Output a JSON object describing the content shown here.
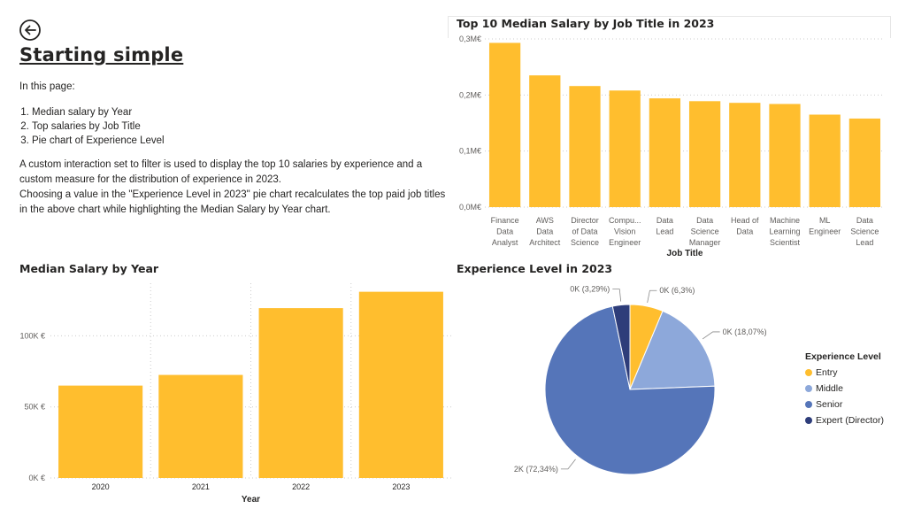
{
  "page": {
    "back_icon": "arrow-left-circle-icon",
    "title": "Starting simple",
    "intro": "In this page:",
    "items": [
      "Median salary by Year",
      "Top salaries by Job Title",
      "Pie chart of Experience Level"
    ],
    "description_1": "A custom interaction set to filter is used to display the top 10 salaries by experience and a custom measure for the distribution of experience in 2023.",
    "description_2": "Choosing a value in the \"Experience Level in 2023\"  pie chart recalculates the top paid job titles in the above chart while highlighting the Median Salary by Year chart."
  },
  "colors": {
    "bar": "#FFBE2E",
    "grid": "#cccccc",
    "entry": "#FFBE2E",
    "middle": "#8DA8DA",
    "senior": "#5575B9",
    "expert": "#2E3D7A"
  },
  "chart_data": [
    {
      "type": "bar",
      "title": "Top 10 Median Salary by Job Title in 2023",
      "xlabel": "Job Title",
      "ylabel": "",
      "categories": [
        [
          "Finance",
          "Data",
          "Analyst"
        ],
        [
          "AWS",
          "Data",
          "Architect"
        ],
        [
          "Director",
          "of Data",
          "Science"
        ],
        [
          "Compu...",
          "Vision",
          "Engineer"
        ],
        [
          "Data",
          "Lead"
        ],
        [
          "Data",
          "Science",
          "Manager"
        ],
        [
          "Head of",
          "Data"
        ],
        [
          "Machine",
          "Learning",
          "Scientist"
        ],
        [
          "ML",
          "Engineer"
        ],
        [
          "Data",
          "Science",
          "Lead"
        ]
      ],
      "values": [
        0.293,
        0.235,
        0.216,
        0.208,
        0.194,
        0.189,
        0.186,
        0.184,
        0.165,
        0.158
      ],
      "yticks": [
        0,
        0.1,
        0.2,
        0.3
      ],
      "ytick_labels": [
        "0,0M€",
        "0,1M€",
        "0,2M€",
        "0,3M€"
      ],
      "ylim": [
        0,
        0.3
      ],
      "grid": true
    },
    {
      "type": "bar",
      "title": "Median Salary by Year",
      "xlabel": "Year",
      "ylabel": "",
      "categories": [
        "2020",
        "2021",
        "2022",
        "2023"
      ],
      "values": [
        65000,
        72500,
        119500,
        131000
      ],
      "yticks": [
        0,
        50000,
        100000
      ],
      "ytick_labels": [
        "0K €",
        "50K €",
        "100K €"
      ],
      "ylim": [
        0,
        137000
      ],
      "grid": true
    },
    {
      "type": "pie",
      "title": "Experience Level in 2023",
      "legend_title": "Experience Level",
      "legend_position": "right",
      "slices": [
        {
          "name": "Entry",
          "value": 6.3,
          "label": "0K (6,3%)",
          "color": "#FFBE2E"
        },
        {
          "name": "Middle",
          "value": 18.07,
          "label": "0K (18,07%)",
          "color": "#8DA8DA"
        },
        {
          "name": "Senior",
          "value": 72.34,
          "label": "2K (72,34%)",
          "color": "#5575B9"
        },
        {
          "name": "Expert (Director)",
          "value": 3.29,
          "label": "0K (3,29%)",
          "color": "#2E3D7A"
        }
      ]
    }
  ]
}
